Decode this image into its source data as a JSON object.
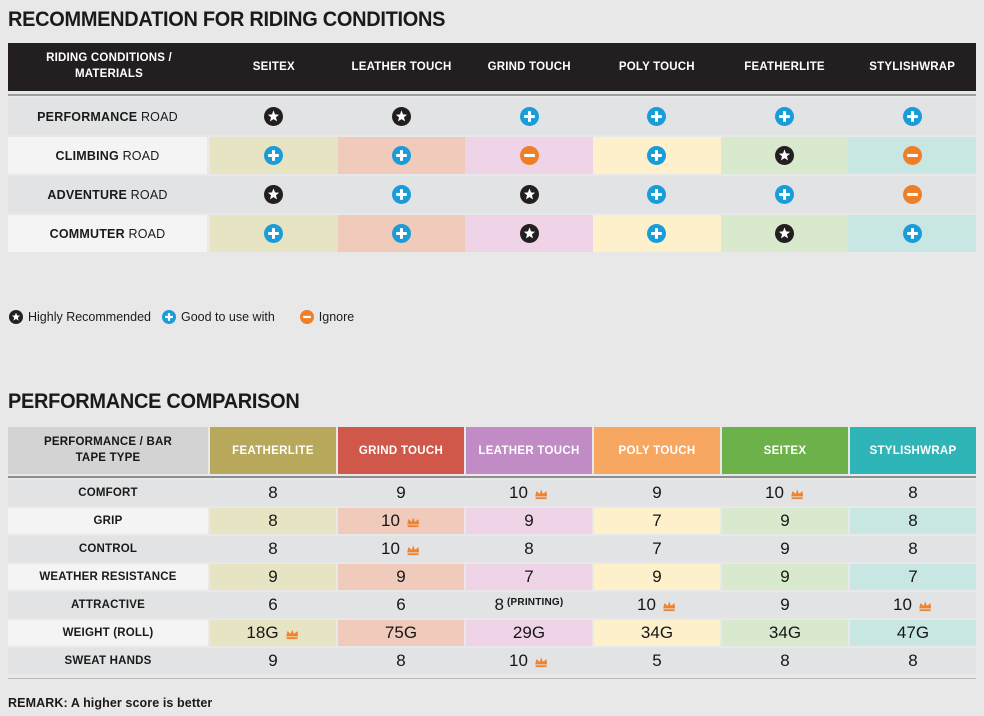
{
  "colors": {
    "page_bg": "#e8e8e8",
    "table1_header_bg": "#231f20",
    "gray_row": "#e2e3e4",
    "label_cell": "#f4f4f4",
    "icon_star": "#231f20",
    "icon_plus": "#1a9cd8",
    "icon_minus": "#ef7f27",
    "icon_crown": "#ef8430",
    "column_tints": [
      "#e7e4c4",
      "#f0cabb",
      "#eed4e6",
      "#fdf0ca",
      "#d9e9ce",
      "#c8e7e3"
    ],
    "table2_header_colors": [
      "#b7a85c",
      "#d0584b",
      "#c18cc5",
      "#f8a763",
      "#6db14b",
      "#2fb5b8"
    ]
  },
  "chart_data": [
    {
      "type": "table",
      "title": "RECOMMENDATION FOR RIDING CONDITIONS",
      "corner_label": "RIDING CONDITIONS / MATERIALS",
      "columns": [
        "SEITEX",
        "LEATHER TOUCH",
        "GRIND TOUCH",
        "POLY TOUCH",
        "FEATHERLITE",
        "STYLISHWRAP"
      ],
      "rows": [
        {
          "label_strong": "PERFORMANCE",
          "label_rest": "ROAD",
          "values": [
            "star",
            "star",
            "plus",
            "plus",
            "plus",
            "plus"
          ]
        },
        {
          "label_strong": "CLIMBING",
          "label_rest": "ROAD",
          "values": [
            "plus",
            "plus",
            "minus",
            "plus",
            "star",
            "minus"
          ]
        },
        {
          "label_strong": "ADVENTURE",
          "label_rest": "ROAD",
          "values": [
            "star",
            "plus",
            "star",
            "plus",
            "plus",
            "minus"
          ]
        },
        {
          "label_strong": "COMMUTER",
          "label_rest": "ROAD",
          "values": [
            "plus",
            "plus",
            "star",
            "plus",
            "star",
            "plus"
          ]
        }
      ],
      "legend": [
        {
          "icon": "star",
          "label": "Highly Recommended"
        },
        {
          "icon": "plus",
          "label": "Good to use with"
        },
        {
          "icon": "minus",
          "label": "Ignore"
        }
      ]
    },
    {
      "type": "table",
      "title": "PERFORMANCE COMPARISON",
      "corner_label": "PERFORMANCE / BAR TAPE TYPE",
      "columns": [
        "FEATHERLITE",
        "GRIND TOUCH",
        "LEATHER TOUCH",
        "POLY TOUCH",
        "SEITEX",
        "STYLISHWRAP"
      ],
      "rows": [
        {
          "label": "COMFORT",
          "cells": [
            {
              "v": "8"
            },
            {
              "v": "9"
            },
            {
              "v": "10",
              "crown": true
            },
            {
              "v": "9"
            },
            {
              "v": "10",
              "crown": true
            },
            {
              "v": "8"
            }
          ]
        },
        {
          "label": "GRIP",
          "cells": [
            {
              "v": "8"
            },
            {
              "v": "10",
              "crown": true
            },
            {
              "v": "9"
            },
            {
              "v": "7"
            },
            {
              "v": "9"
            },
            {
              "v": "8"
            }
          ]
        },
        {
          "label": "CONTROL",
          "cells": [
            {
              "v": "8"
            },
            {
              "v": "10",
              "crown": true
            },
            {
              "v": "8"
            },
            {
              "v": "7"
            },
            {
              "v": "9"
            },
            {
              "v": "8"
            }
          ]
        },
        {
          "label": "WEATHER RESISTANCE",
          "cells": [
            {
              "v": "9"
            },
            {
              "v": "9"
            },
            {
              "v": "7"
            },
            {
              "v": "9"
            },
            {
              "v": "9"
            },
            {
              "v": "7"
            }
          ]
        },
        {
          "label": "ATTRACTIVE",
          "cells": [
            {
              "v": "6"
            },
            {
              "v": "6"
            },
            {
              "v": "8",
              "note": "(PRINTING)"
            },
            {
              "v": "10",
              "crown": true
            },
            {
              "v": "9"
            },
            {
              "v": "10",
              "crown": true
            }
          ]
        },
        {
          "label": "WEIGHT (ROLL)",
          "cells": [
            {
              "v": "18G",
              "crown": true
            },
            {
              "v": "75G"
            },
            {
              "v": "29G"
            },
            {
              "v": "34G"
            },
            {
              "v": "34G"
            },
            {
              "v": "47G"
            }
          ]
        },
        {
          "label": "SWEAT HANDS",
          "cells": [
            {
              "v": "9"
            },
            {
              "v": "8"
            },
            {
              "v": "10",
              "crown": true
            },
            {
              "v": "5"
            },
            {
              "v": "8"
            },
            {
              "v": "8"
            }
          ]
        }
      ],
      "remark": "REMARK: A higher score is better"
    }
  ]
}
